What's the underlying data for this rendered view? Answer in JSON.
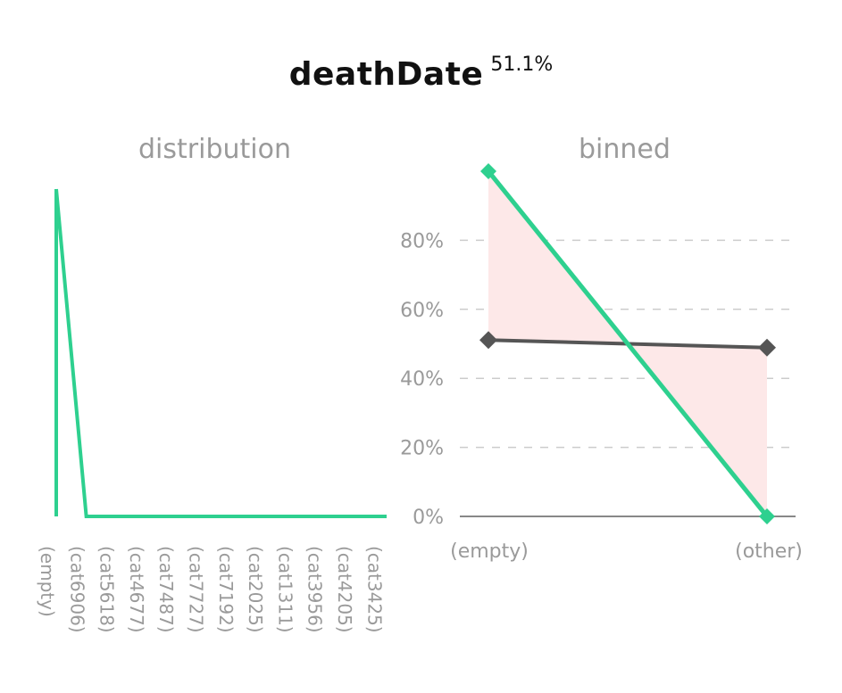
{
  "title": "deathDate",
  "title_pct": "51.1%",
  "colors": {
    "green": "#2ed08f",
    "dark": "#555555",
    "shade": "#fde8e8",
    "grid": "#cccccc",
    "text": "#9a9a9a"
  },
  "chart_data": [
    {
      "type": "line",
      "title": "distribution",
      "categories": [
        "(empty)",
        "(cat6906)",
        "(cat5618)",
        "(cat4677)",
        "(cat7487)",
        "(cat7727)",
        "(cat7192)",
        "(cat2025)",
        "(cat1311)",
        "(cat3956)",
        "(cat4205)",
        "(cat3425)"
      ],
      "series": [
        {
          "values": [
            100,
            0,
            0,
            0,
            0,
            0,
            0,
            0,
            0,
            0,
            0,
            0
          ]
        }
      ],
      "ylim": [
        0,
        100
      ],
      "grid": false
    },
    {
      "type": "line",
      "title": "binned",
      "categories": [
        "(empty)",
        "(other)"
      ],
      "series": [
        {
          "values": [
            100,
            0
          ],
          "color": "#2ed08f"
        },
        {
          "values": [
            51.1,
            48.9
          ],
          "color": "#555555"
        }
      ],
      "yticks": [
        "0%",
        "20%",
        "40%",
        "60%",
        "80%"
      ],
      "ylim": [
        0,
        100
      ],
      "grid": true
    }
  ]
}
